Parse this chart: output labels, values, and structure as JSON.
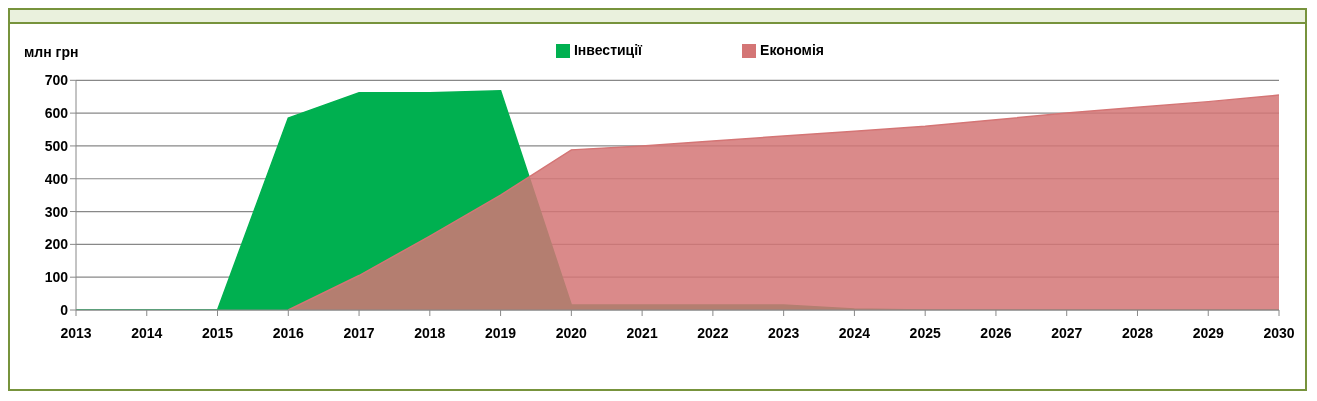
{
  "chart_data": {
    "type": "area",
    "ylabel": "млн грн",
    "x": [
      2013,
      2014,
      2015,
      2016,
      2017,
      2018,
      2019,
      2020,
      2021,
      2022,
      2023,
      2024,
      2025,
      2026,
      2027,
      2028,
      2029,
      2030
    ],
    "series": [
      {
        "name": "Інвестиції",
        "color": "#00b050",
        "values": [
          0,
          0,
          0,
          585,
          662,
          662,
          668,
          15,
          15,
          15,
          15,
          3,
          0,
          0,
          0,
          0,
          0,
          0
        ]
      },
      {
        "name": "Економія",
        "color": "#d47575",
        "values": [
          null,
          null,
          null,
          0,
          105,
          225,
          350,
          488,
          500,
          515,
          530,
          545,
          560,
          580,
          600,
          618,
          635,
          655
        ]
      }
    ],
    "xlim": [
      2013,
      2030
    ],
    "xticks": [
      2013,
      2014,
      2015,
      2016,
      2017,
      2018,
      2019,
      2020,
      2021,
      2022,
      2023,
      2024,
      2025,
      2026,
      2027,
      2028,
      2029,
      2030
    ],
    "ylim": [
      0,
      700
    ],
    "yticks": [
      0,
      100,
      200,
      300,
      400,
      500,
      600,
      700
    ],
    "grid": "y",
    "legend": "top"
  }
}
